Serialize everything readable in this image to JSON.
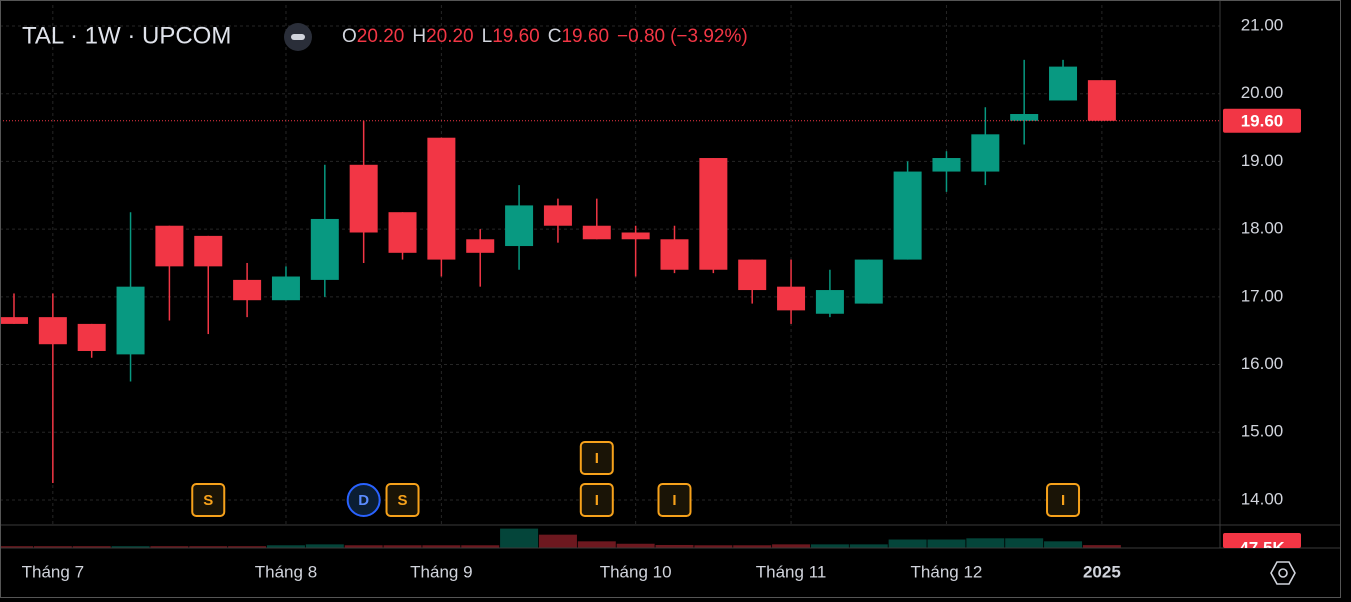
{
  "chart_data": {
    "type": "candlestick",
    "header": {
      "symbol": "TAL · 1W · UPCOM",
      "o_letter": "O",
      "open": {
        "value": 20.2,
        "label": "20.20"
      },
      "h_letter": "H",
      "high": {
        "value": 20.2,
        "label": "20.20"
      },
      "l_letter": "L",
      "low": {
        "value": 19.6,
        "label": "19.60"
      },
      "c_letter": "C",
      "close": {
        "value": 19.6,
        "label": "19.60"
      },
      "change": {
        "value": -0.8,
        "label": "−0.80"
      },
      "change_pct": {
        "value": -3.92,
        "label": "(−3.92%)"
      }
    },
    "x": [
      0,
      1,
      2,
      3,
      4,
      5,
      6,
      7,
      8,
      9,
      10,
      11,
      12,
      13,
      14,
      15,
      16,
      17,
      18,
      19,
      20,
      21,
      22,
      23,
      24,
      25,
      26,
      27,
      28
    ],
    "open": [
      16.7,
      16.7,
      16.6,
      16.15,
      18.05,
      17.9,
      17.25,
      16.95,
      17.25,
      18.95,
      18.25,
      19.35,
      17.85,
      17.75,
      18.35,
      18.05,
      17.95,
      17.85,
      19.05,
      17.55,
      17.15,
      16.75,
      16.9,
      17.55,
      18.85,
      18.85,
      19.6,
      19.9,
      20.2
    ],
    "high": [
      17.05,
      17.05,
      16.6,
      18.25,
      18.05,
      17.9,
      17.5,
      17.45,
      18.95,
      19.6,
      18.25,
      19.35,
      18.0,
      18.65,
      18.45,
      18.45,
      18.05,
      18.05,
      19.05,
      17.55,
      17.55,
      17.4,
      17.55,
      19.0,
      19.15,
      19.8,
      20.5,
      20.5,
      20.2
    ],
    "low": [
      16.6,
      14.25,
      16.1,
      15.75,
      16.65,
      16.45,
      16.7,
      16.95,
      17.0,
      17.5,
      17.55,
      17.3,
      17.15,
      17.4,
      17.8,
      17.85,
      17.3,
      17.35,
      17.35,
      16.9,
      16.6,
      16.7,
      16.9,
      17.55,
      18.55,
      18.65,
      19.25,
      19.9,
      19.6
    ],
    "close": [
      16.6,
      16.3,
      16.2,
      17.15,
      17.45,
      17.45,
      16.95,
      17.3,
      18.15,
      17.95,
      17.65,
      17.55,
      17.65,
      18.35,
      18.05,
      17.85,
      17.85,
      17.4,
      17.4,
      17.1,
      16.8,
      17.1,
      17.55,
      18.85,
      19.05,
      19.4,
      19.7,
      20.4,
      19.6
    ],
    "up_color": "#089981",
    "down_color": "#f23645",
    "volume": [
      30,
      30,
      30,
      30,
      30,
      30,
      30,
      45,
      60,
      45,
      45,
      45,
      45,
      320,
      220,
      110,
      70,
      50,
      45,
      45,
      60,
      60,
      60,
      140,
      140,
      160,
      160,
      110,
      47.5
    ],
    "volume_ylim": [
      0,
      330
    ],
    "volume_label": {
      "value": 47.5,
      "label": "47.5K"
    },
    "xlim": [
      -0.36,
      31.04
    ],
    "xticks": [
      {
        "value": 1,
        "label": "Tháng 7"
      },
      {
        "value": 7,
        "label": "Tháng 8"
      },
      {
        "value": 11,
        "label": "Tháng 9"
      },
      {
        "value": 16,
        "label": "Tháng 10"
      },
      {
        "value": 20,
        "label": "Tháng 11"
      },
      {
        "value": 24,
        "label": "Tháng 12"
      },
      {
        "value": 28,
        "label": "2025"
      }
    ],
    "ylim": [
      13.63,
      21.31
    ],
    "yticks": [
      {
        "value": 21,
        "label": "21.00"
      },
      {
        "value": 20,
        "label": "20.00"
      },
      {
        "value": 19,
        "label": "19.00"
      },
      {
        "value": 18,
        "label": "18.00"
      },
      {
        "value": 17,
        "label": "17.00"
      },
      {
        "value": 16,
        "label": "16.00"
      },
      {
        "value": 15,
        "label": "15.00"
      },
      {
        "value": 14,
        "label": "14.00"
      }
    ],
    "last_price": {
      "value": 19.6,
      "label": "19.60"
    },
    "grid": true,
    "events": [
      {
        "label": "S",
        "x": 5
      },
      {
        "label": "D",
        "x": 9
      },
      {
        "label": "S",
        "x": 10
      },
      {
        "label": "I",
        "x": 15
      },
      {
        "label": "I",
        "x": 15
      },
      {
        "label": "I",
        "x": 17
      },
      {
        "label": "I",
        "x": 27
      }
    ]
  }
}
